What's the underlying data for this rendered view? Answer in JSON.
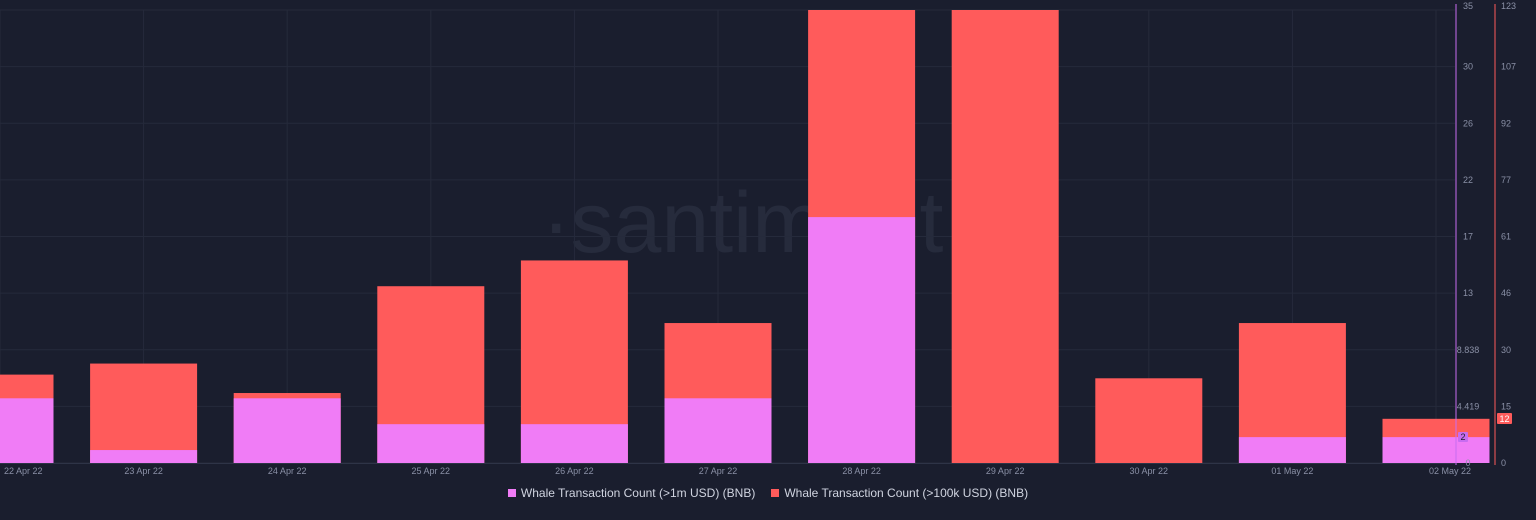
{
  "watermark": "·santiment·",
  "legend": [
    {
      "label": "Whale Transaction Count (>1m USD) (BNB)",
      "color": "#f07cf6"
    },
    {
      "label": "Whale Transaction Count (>100k USD) (BNB)",
      "color": "#ff5b5b"
    }
  ],
  "chart_data": {
    "type": "bar",
    "stacked": true,
    "categories": [
      "22 Apr 22",
      "23 Apr 22",
      "24 Apr 22",
      "25 Apr 22",
      "26 Apr 22",
      "27 Apr 22",
      "28 Apr 22",
      "29 Apr 22",
      "30 Apr 22",
      "01 May 22",
      "02 May 22"
    ],
    "series": [
      {
        "name": "Whale Transaction Count (>1m USD) (BNB)",
        "axis": "left",
        "color": "#f07cf6",
        "values": [
          5,
          1,
          5,
          3,
          3,
          5,
          19,
          0,
          0,
          2,
          2
        ]
      },
      {
        "name": "Whale Transaction Count (>100k USD) (BNB)",
        "axis": "right",
        "color": "#ff5b5b",
        "values": [
          24,
          27,
          19,
          48,
          55,
          38,
          123,
          123,
          23,
          38,
          12
        ]
      }
    ],
    "y_left": {
      "min": 0,
      "max": 35,
      "ticks": [
        "0",
        "4.419",
        "8.838",
        "13",
        "17",
        "22",
        "26",
        "30",
        "35"
      ],
      "color": "#c86cf0"
    },
    "y_right": {
      "min": 0,
      "max": 123,
      "ticks": [
        "0",
        "15",
        "30",
        "46",
        "61",
        "77",
        "92",
        "107",
        "123"
      ],
      "color": "#ff5b5b"
    },
    "last_value_labels": {
      "left": "2",
      "right": "12"
    },
    "grid": true,
    "legend_position": "bottom"
  }
}
